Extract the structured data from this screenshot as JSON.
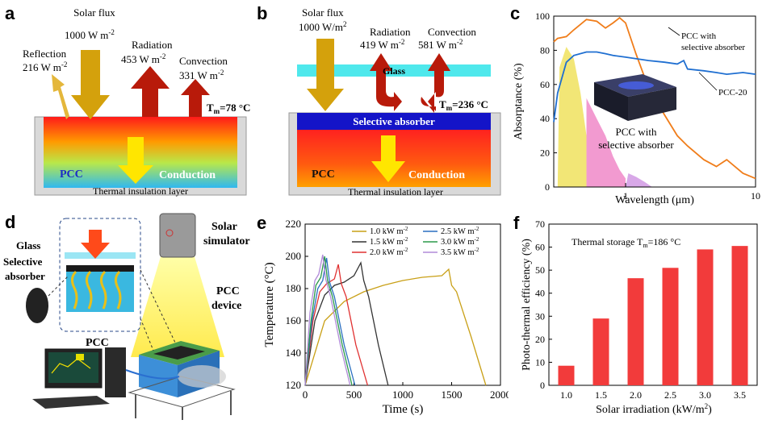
{
  "panels": {
    "a": {
      "label": "a",
      "solar_flux": "Solar flux",
      "solar_value": "1000 W m",
      "reflection": "Reflection",
      "reflection_value": "216 W m",
      "radiation": "Radiation",
      "radiation_value": "453 W m",
      "convection": "Convection",
      "convection_value": "331 W m",
      "tm_label": "T",
      "tm_sub": "m",
      "tm_value": "=78 °C",
      "pcc": "PCC",
      "conduction": "Conduction",
      "insulation": "Thermal insulation layer",
      "exp": "-2"
    },
    "b": {
      "label": "b",
      "solar_flux": "Solar flux",
      "solar_value": "1000 W/m",
      "solar_exp": "2",
      "radiation": "Radiation",
      "radiation_value": "419 W m",
      "convection": "Convection",
      "convection_value": "581 W m",
      "glass": "Glass",
      "tm_label": "T",
      "tm_sub": "m",
      "tm_value": "=236 °C",
      "selective": "Selective absorber",
      "pcc": "PCC",
      "conduction": "Conduction",
      "insulation": "Thermal insulation layer",
      "exp": "-2"
    },
    "c": {
      "label": "c",
      "legend_pcc_sel": "PCC with selective absorber",
      "legend_pcc20": "PCC-20",
      "inset_caption_1": "PCC with",
      "inset_caption_2": "selective absorber",
      "xlabel": "Wavelength (μm)",
      "ylabel": "Absorptance (%)",
      "yticks": [
        "0",
        "20",
        "40",
        "60",
        "80",
        "100"
      ],
      "xticks": [
        "1",
        "10"
      ]
    },
    "d": {
      "label": "d",
      "glass": "Glass",
      "selective_1": "Selective",
      "selective_2": "absorber",
      "pcc": "PCC",
      "solar_1": "Solar",
      "solar_2": "simulator",
      "device_1": "PCC",
      "device_2": "device"
    },
    "e": {
      "label": "e",
      "xlabel": "Time (s)",
      "ylabel": "Temperature (°C)",
      "yticks": [
        "120",
        "140",
        "160",
        "180",
        "200",
        "220"
      ],
      "xticks": [
        "0",
        "500",
        "1000",
        "1500",
        "2000"
      ]
    },
    "f": {
      "label": "f",
      "annotation": "Thermal storage T",
      "annotation_sub": "m",
      "annotation_value": "=186 °C",
      "xlabel": "Solar irradiation (kW/m",
      "xlabel_exp": "2",
      "xlabel_end": ")",
      "ylabel": "Photo-thermal efficiency (%)",
      "yticks": [
        "0",
        "10",
        "20",
        "30",
        "40",
        "50",
        "60",
        "70"
      ]
    }
  },
  "chart_data": [
    {
      "type": "line",
      "panel": "c",
      "xlabel": "Wavelength (μm)",
      "ylabel": "Absorptance (%)",
      "xscale": "log",
      "xlim": [
        0.28,
        10
      ],
      "ylim": [
        0,
        100
      ],
      "series": [
        {
          "name": "PCC with selective absorber",
          "color": "#f07d1a",
          "x": [
            0.28,
            0.3,
            0.35,
            0.4,
            0.5,
            0.6,
            0.7,
            0.8,
            0.9,
            1.0,
            1.2,
            1.5,
            2,
            2.5,
            3,
            4,
            5,
            6,
            8,
            10
          ],
          "y": [
            85,
            87,
            88,
            92,
            98,
            97,
            93,
            96,
            99,
            96,
            78,
            58,
            42,
            30,
            24,
            16,
            12,
            16,
            8,
            5
          ]
        },
        {
          "name": "PCC-20",
          "color": "#1f6fd1",
          "x": [
            0.28,
            0.3,
            0.35,
            0.4,
            0.5,
            0.6,
            0.7,
            0.8,
            1.0,
            1.5,
            2,
            2.5,
            2.8,
            3,
            4,
            5,
            6,
            8,
            10
          ],
          "y": [
            38,
            55,
            73,
            77,
            79,
            79,
            78,
            77,
            76,
            74,
            73,
            72,
            74,
            69,
            68,
            67,
            66,
            67,
            66
          ]
        }
      ]
    },
    {
      "type": "line",
      "panel": "e",
      "xlabel": "Time (s)",
      "ylabel": "Temperature (°C)",
      "xlim": [
        0,
        2000
      ],
      "ylim": [
        120,
        220
      ],
      "legend_position": "top-right",
      "series": [
        {
          "name": "1.0 kW m",
          "color": "#c9a017",
          "x": [
            0,
            200,
            400,
            600,
            800,
            1000,
            1200,
            1400,
            1470,
            1500,
            1550,
            1700,
            1850
          ],
          "y": [
            120,
            160,
            172,
            178,
            182,
            185,
            187,
            188,
            192,
            182,
            178,
            150,
            120
          ]
        },
        {
          "name": "1.5 kW m",
          "color": "#333333",
          "x": [
            0,
            100,
            200,
            300,
            400,
            500,
            570,
            600,
            650,
            750,
            850
          ],
          "y": [
            120,
            160,
            176,
            182,
            184,
            188,
            196,
            185,
            175,
            145,
            120
          ]
        },
        {
          "name": "2.0 kW m",
          "color": "#e03030",
          "x": [
            0,
            80,
            150,
            220,
            300,
            340,
            370,
            420,
            520,
            640
          ],
          "y": [
            120,
            160,
            178,
            183,
            186,
            195,
            183,
            175,
            145,
            120
          ]
        },
        {
          "name": "2.5 kW m",
          "color": "#2a6fc0",
          "x": [
            0,
            70,
            130,
            180,
            220,
            250,
            300,
            400,
            510
          ],
          "y": [
            120,
            160,
            180,
            185,
            199,
            184,
            175,
            145,
            120
          ]
        },
        {
          "name": "3.0 kW m",
          "color": "#2b9a4a",
          "x": [
            0,
            60,
            110,
            160,
            200,
            230,
            280,
            380,
            480
          ],
          "y": [
            120,
            160,
            182,
            187,
            200,
            185,
            175,
            145,
            120
          ]
        },
        {
          "name": "3.5 kW m",
          "color": "#b08ad8",
          "x": [
            0,
            50,
            100,
            140,
            180,
            210,
            260,
            360,
            460
          ],
          "y": [
            120,
            165,
            185,
            189,
            201,
            186,
            175,
            145,
            120
          ]
        }
      ]
    },
    {
      "type": "bar",
      "panel": "f",
      "categories": [
        "1.0",
        "1.5",
        "2.0",
        "2.5",
        "3.0",
        "3.5"
      ],
      "values": [
        8.5,
        29,
        46.5,
        51,
        59,
        60.5
      ],
      "ylim": [
        0,
        70
      ],
      "xlabel": "Solar irradiation (kW/m2)",
      "ylabel": "Photo-thermal efficiency (%)",
      "color": "#f23b3b"
    }
  ]
}
